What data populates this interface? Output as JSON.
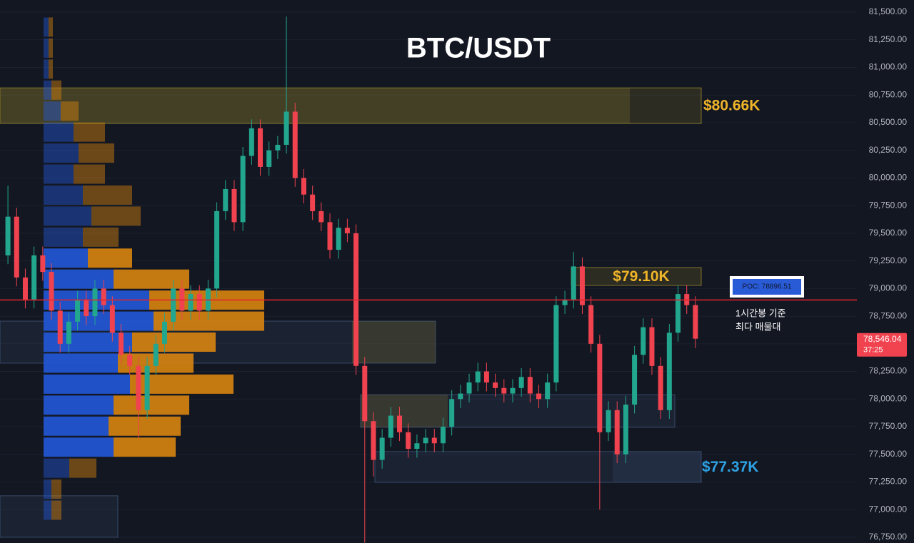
{
  "chart_data": {
    "type": "candlestick",
    "title": "BTC/USDT",
    "ylim": [
      76698,
      81610
    ],
    "yticks": [
      {
        "value": 76750,
        "label": "76,750.00"
      },
      {
        "value": 77000,
        "label": "77,000.00"
      },
      {
        "value": 77250,
        "label": "77,250.00"
      },
      {
        "value": 77500,
        "label": "77,500.00"
      },
      {
        "value": 77750,
        "label": "77,750.00"
      },
      {
        "value": 78000,
        "label": "78,000.00"
      },
      {
        "value": 78250,
        "label": "78,250.00"
      },
      {
        "value": 78500,
        "label": "78,500.00"
      },
      {
        "value": 78750,
        "label": "78,750.00"
      },
      {
        "value": 79000,
        "label": "79,000.00"
      },
      {
        "value": 79250,
        "label": "79,250.00"
      },
      {
        "value": 79500,
        "label": "79,500.00"
      },
      {
        "value": 79750,
        "label": "79,750.00"
      },
      {
        "value": 80000,
        "label": "80,000.00"
      },
      {
        "value": 80250,
        "label": "80,250.00"
      },
      {
        "value": 80500,
        "label": "80,500.00"
      },
      {
        "value": 80750,
        "label": "80,750.00"
      },
      {
        "value": 81000,
        "label": "81,000.00"
      },
      {
        "value": 81250,
        "label": "81,250.00"
      },
      {
        "value": 81500,
        "label": "81,500.00"
      }
    ],
    "grid": true,
    "up_color": "#22a68e",
    "down_color": "#f0434f",
    "open": [
      79300,
      79650,
      79100,
      78900,
      79300,
      79150,
      78800,
      78500,
      78700,
      78900,
      78750,
      79000,
      78850,
      78600,
      78400,
      78300,
      77900,
      78300,
      78500,
      78700,
      79000,
      78800,
      78950,
      78800,
      79000,
      79700,
      79900,
      79600,
      80200,
      80450,
      80100,
      80250,
      80300,
      80600,
      80000,
      79850,
      79700,
      79600,
      79350,
      79550,
      79500,
      78300,
      77800,
      77450,
      77650,
      77850,
      77700,
      77550,
      77600,
      77650,
      77600,
      77750,
      78000,
      78050,
      78150,
      78250,
      78150,
      78100,
      78050,
      78100,
      78200,
      78050,
      78000,
      78150,
      78850,
      78900,
      79200,
      78850,
      78500,
      77700,
      77900,
      77500,
      77950,
      78400,
      78650,
      78300,
      77900,
      78600,
      78950,
      78850
    ],
    "high": [
      79930,
      79730,
      79180,
      79380,
      79380,
      79230,
      78880,
      78780,
      78980,
      78980,
      79080,
      79080,
      78930,
      78680,
      78480,
      78380,
      78380,
      78580,
      78780,
      79080,
      79080,
      79030,
      79030,
      79080,
      79780,
      79980,
      79980,
      80280,
      80530,
      80530,
      80330,
      80380,
      81460,
      80680,
      80080,
      79930,
      79780,
      79680,
      79630,
      79630,
      79580,
      78380,
      77880,
      77730,
      77930,
      77930,
      77780,
      77680,
      77730,
      77730,
      77830,
      78080,
      78130,
      78230,
      78330,
      78330,
      78230,
      78180,
      78180,
      78280,
      78280,
      78130,
      78230,
      78930,
      78980,
      79330,
      79280,
      78930,
      78580,
      77980,
      77980,
      78030,
      78480,
      78730,
      78730,
      78380,
      78680,
      79030,
      79030,
      78930
    ],
    "low": [
      79220,
      79020,
      78820,
      78820,
      79070,
      78720,
      78420,
      78420,
      78620,
      78670,
      78670,
      78770,
      78520,
      78320,
      78220,
      77650,
      77820,
      78220,
      78420,
      78620,
      78720,
      78720,
      78720,
      78720,
      78920,
      79620,
      79520,
      79520,
      80120,
      80020,
      80020,
      80170,
      80220,
      79920,
      79770,
      79620,
      79520,
      79270,
      79270,
      79420,
      78220,
      76700,
      77300,
      77370,
      77570,
      77620,
      77470,
      77470,
      77520,
      77520,
      77520,
      77670,
      77920,
      77970,
      78070,
      78070,
      78020,
      77970,
      77970,
      78020,
      77970,
      77920,
      77920,
      78070,
      78770,
      78820,
      78770,
      78420,
      77000,
      77620,
      77420,
      77420,
      77870,
      78320,
      78220,
      77820,
      77820,
      78520,
      78770,
      78460
    ],
    "close": [
      79650,
      79100,
      78900,
      79300,
      79150,
      78800,
      78500,
      78700,
      78900,
      78750,
      79000,
      78850,
      78600,
      78400,
      78300,
      77900,
      78300,
      78500,
      78700,
      79000,
      78800,
      78950,
      78800,
      79000,
      79700,
      79900,
      79600,
      80200,
      80450,
      80100,
      80250,
      80300,
      80600,
      80000,
      79850,
      79700,
      79600,
      79350,
      79550,
      79500,
      78300,
      77800,
      77450,
      77650,
      77850,
      77700,
      77550,
      77600,
      77650,
      77600,
      77750,
      78000,
      78050,
      78150,
      78250,
      78150,
      78100,
      78050,
      78100,
      78200,
      78050,
      78000,
      78150,
      78850,
      78900,
      79200,
      78850,
      78500,
      77700,
      77900,
      77500,
      77950,
      78400,
      78650,
      78300,
      77900,
      78600,
      78950,
      78850,
      78546.04
    ],
    "volume_profile": {
      "levels": [
        81365,
        81175,
        80985,
        80795,
        80605,
        80415,
        80225,
        80035,
        79845,
        79655,
        79465,
        79275,
        79085,
        78895,
        78705,
        78515,
        78325,
        78135,
        77945,
        77755,
        77565,
        77375,
        77185,
        76995
      ],
      "buy": [
        7,
        7,
        7,
        11,
        24,
        42,
        49,
        42,
        55,
        67,
        55,
        62,
        98,
        148,
        154,
        124,
        104,
        121,
        98,
        91,
        98,
        36,
        11,
        11
      ],
      "sell": [
        6,
        6,
        6,
        14,
        25,
        44,
        50,
        44,
        69,
        69,
        50,
        62,
        106,
        161,
        155,
        117,
        106,
        145,
        106,
        101,
        87,
        38,
        14,
        14
      ],
      "buy_color": "#2358d8",
      "sell_color": "#d9840f"
    },
    "zones": [
      {
        "low": 80493,
        "high": 80815,
        "color": "#8a7a2a",
        "label": "$80.66K",
        "label_color": "#f0b429"
      },
      {
        "low": 79028,
        "high": 79190,
        "color": "#8a7a2a",
        "label": "$79.10K",
        "label_color": "#f0b429"
      },
      {
        "low": 78325,
        "high": 78705,
        "color": "#3a4f6e"
      },
      {
        "low": 77745,
        "high": 78040,
        "color": "#3a4f6e"
      },
      {
        "low": 77247,
        "high": 77525,
        "color": "#3a4f6e",
        "label": "$77.37K",
        "label_color": "#2ea3e6"
      },
      {
        "low": 76750,
        "high": 77125,
        "color": "#3a4f6e"
      }
    ],
    "poc": {
      "value": 78896.51,
      "label": "POC: 78896.51"
    },
    "annotation": [
      "1시간봉 기준",
      "최다 매물대"
    ],
    "current_price": {
      "value": 78546.04,
      "label": "78,546.04"
    },
    "countdown": "37:25"
  }
}
